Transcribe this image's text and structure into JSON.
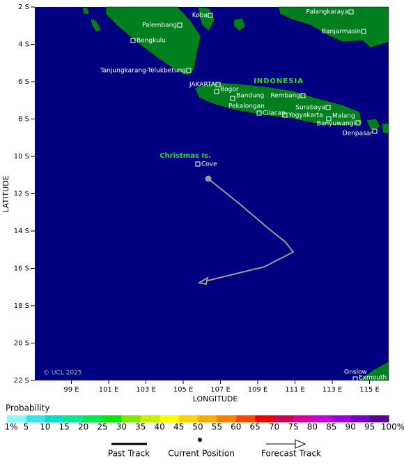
{
  "map": {
    "x_label": "LONGITUDE",
    "y_label": "LATITUDE",
    "lat_labels": [
      "2 S",
      "4 S",
      "6 S",
      "8 S",
      "10 S",
      "12 S",
      "14 S",
      "16 S",
      "18 S",
      "20 S",
      "22 S"
    ],
    "lon_labels": [
      "99 E",
      "101 E",
      "103 E",
      "105 E",
      "107 E",
      "109 E",
      "111 E",
      "113 E",
      "115 E"
    ],
    "country": "INDONESIA",
    "island": "Christmas Is.",
    "copyright": "© UCL 2025",
    "places": [
      "Koba",
      "Palangkaraya",
      "Palembang",
      "Banjarmasin",
      "Bengkulu",
      "Tanjungkarang-Telukbetung",
      "JAKARTA",
      "Bogor",
      "Bandung",
      "Rembang",
      "Pekalongan",
      "Cilacap",
      "Surabaya",
      "Yogyakarta",
      "Malang",
      "Banyuwangi",
      "Denpasar",
      "Cove",
      "Onslow",
      "Exmouth"
    ]
  },
  "legend": {
    "title": "Probability",
    "scale": [
      "1%",
      "5",
      "10",
      "15",
      "20",
      "25",
      "30",
      "35",
      "40",
      "45",
      "50",
      "55",
      "60",
      "65",
      "70",
      "75",
      "80",
      "85",
      "90",
      "95",
      "100%"
    ],
    "colors": [
      "#8ff8ff",
      "#33e6f0",
      "#00e0c8",
      "#00e88c",
      "#00e84a",
      "#00e800",
      "#7ee800",
      "#c8f000",
      "#ffff00",
      "#ffd200",
      "#ffaa00",
      "#ff7e00",
      "#ff4600",
      "#f00000",
      "#d20050",
      "#dc00a0",
      "#c800dc",
      "#a000dc",
      "#7800c8",
      "#5a0096"
    ],
    "keys": [
      "Past Track",
      "Current Position",
      "Forecast Track"
    ]
  }
}
